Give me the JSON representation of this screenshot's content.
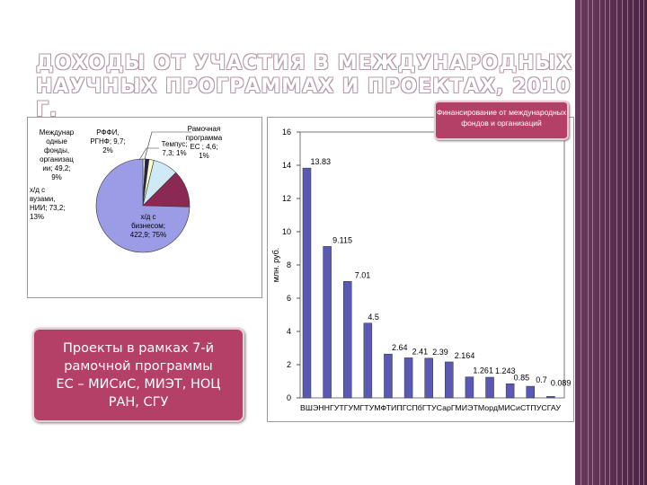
{
  "slide": {
    "title_line1": "Доходы от участия в международных",
    "title_line2": "научных программах и проектах, 2010 г.",
    "funding_box": "Финансирование от международных фондов и организаций",
    "projects_box": "Проекты в рамках 7-й\nрамочной программы\nЕС – МИСиС, МИЭТ, НОЦ\nРАН, СГУ",
    "colors": {
      "accent_box": "#b44068",
      "bar": "#5a5ab5",
      "pie_main": "#9c9ce6",
      "pie_second": "#8a2a52",
      "sidebar": "#5c2d50"
    }
  },
  "chart_data": [
    {
      "type": "pie",
      "slices": [
        {
          "label": "Рамочная программа ЕС",
          "value": 4.6,
          "percent": "1%",
          "color": "#eeeeee"
        },
        {
          "label": "Темпус",
          "value": 7.3,
          "percent": "1%",
          "color": "#222244"
        },
        {
          "label": "РФФИ, РГНФ",
          "value": 9.7,
          "percent": "2%",
          "color": "#ffffc8"
        },
        {
          "label": "Междунар одные фонды, организац ии",
          "value": 49.2,
          "percent": "9%",
          "color": "#cfe9f7"
        },
        {
          "label": "х/д с вузами, НИИ",
          "value": 73.2,
          "percent": "13%",
          "color": "#8a2a52"
        },
        {
          "label": "х/д с бизнесом",
          "value": 422.9,
          "percent": "75%",
          "color": "#9c9ce6"
        }
      ],
      "label_texts": [
        [
          "Междунар",
          "одные",
          "фонды,",
          "организац",
          "ии; 49,2;",
          "9%"
        ],
        [
          "РФФИ,",
          "РГНФ; 9,7;",
          "2%"
        ],
        [
          "Рамочная",
          "программа",
          "ЕС ; 4,6;",
          "1%"
        ],
        [
          "Темпус;",
          "7,3; 1%"
        ],
        [
          "х/д с",
          "вузами,",
          "НИИ; 73,2;",
          "13%"
        ],
        [
          "х/д с",
          "бизнесом;",
          "422,9; 75%"
        ]
      ]
    },
    {
      "type": "bar",
      "categories": [
        "ВШЭ",
        "ННГУ",
        "ТГУ",
        "МГТУ",
        "МФТИ",
        "ПГС",
        "ПбГТУ",
        "СарГМИ",
        "МИЭТ",
        "Морд",
        "МИСиС",
        "ТПУ",
        "СГАУ"
      ],
      "categories_text": "ВШЭННГУТГУМГТУМФТИПГСПбГТУСарГМИЭТМордМИСиСТПУСГАУ",
      "values": [
        13.83,
        9.115,
        7.01,
        4.5,
        2.64,
        2.41,
        2.39,
        2.164,
        1.261,
        1.243,
        0.85,
        0.7,
        0.089
      ],
      "value_labels": [
        "13.83",
        "9.115",
        "7.01",
        "4.5",
        "2.64",
        "2.41",
        "2.39",
        "2.164",
        "1.261",
        "1.243",
        "0.85",
        "0.7",
        "0.089"
      ],
      "ylabel": "млн. руб.",
      "ylim": [
        0,
        16
      ],
      "yticks": [
        "0",
        "2",
        "4",
        "6",
        "8",
        "10",
        "12",
        "14",
        "16"
      ],
      "grid": false,
      "color": "#5a5ab5"
    }
  ]
}
